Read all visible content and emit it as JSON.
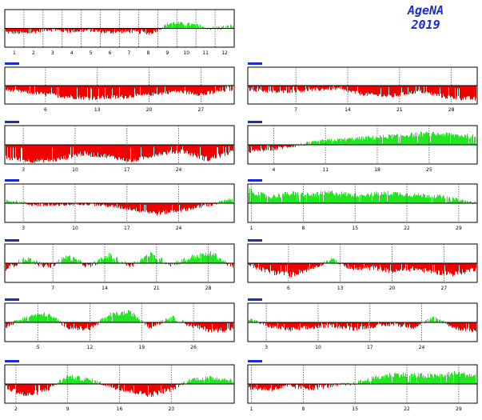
{
  "brand": {
    "name": "AgeNA",
    "year": "2019"
  },
  "colors": {
    "positive": "#22e622",
    "negative": "#f20000",
    "frame": "#000000",
    "title": "#1a2bd0"
  },
  "chart_data": [
    {
      "type": "bar",
      "title": "",
      "panel": "year-overview",
      "ticks": [
        "1",
        "2",
        "3",
        "4",
        "5",
        "6",
        "7",
        "8",
        "9",
        "10",
        "11",
        "12"
      ],
      "ylim": [
        -100,
        100
      ],
      "bands": [
        [
          -30,
          -10
        ],
        [
          -35,
          -15
        ],
        [
          -15,
          5
        ],
        [
          -25,
          -5
        ],
        [
          -20,
          0
        ],
        [
          -30,
          -10
        ],
        [
          -25,
          -5
        ],
        [
          -35,
          -15
        ],
        [
          20,
          40
        ],
        [
          10,
          30
        ],
        [
          -10,
          10
        ],
        [
          -5,
          25
        ]
      ]
    },
    {
      "type": "bar",
      "title": "",
      "ticks": [
        "6",
        "13",
        "20",
        "27"
      ],
      "ylim": [
        -100,
        100
      ],
      "bands": [
        [
          -30,
          -15
        ],
        [
          -50,
          -30
        ],
        [
          -70,
          -45
        ],
        [
          -80,
          -55
        ],
        [
          -75,
          -50
        ],
        [
          -60,
          -40
        ],
        [
          -40,
          -20
        ],
        [
          -60,
          -35
        ],
        [
          -30,
          10
        ]
      ]
    },
    {
      "type": "bar",
      "title": "",
      "ticks": [
        "7",
        "14",
        "21",
        "28"
      ],
      "ylim": [
        -100,
        100
      ],
      "bands": [
        [
          -30,
          -10
        ],
        [
          -45,
          -25
        ],
        [
          -35,
          -15
        ],
        [
          -25,
          -5
        ],
        [
          -55,
          -35
        ],
        [
          -70,
          -45
        ],
        [
          -40,
          -20
        ],
        [
          -75,
          -50
        ],
        [
          -85,
          -60
        ]
      ]
    },
    {
      "type": "bar",
      "title": "",
      "ticks": [
        "3",
        "10",
        "17",
        "24"
      ],
      "ylim": [
        -100,
        100
      ],
      "bands": [
        [
          -80,
          -55
        ],
        [
          -95,
          -75
        ],
        [
          -90,
          -65
        ],
        [
          -60,
          -30
        ],
        [
          -70,
          -45
        ],
        [
          -95,
          -75
        ],
        [
          -60,
          -35
        ],
        [
          -45,
          -20
        ],
        [
          -90,
          -60
        ],
        [
          -50,
          -25
        ]
      ]
    },
    {
      "type": "bar",
      "title": "",
      "ticks": [
        "4",
        "11",
        "18",
        "25"
      ],
      "ylim": [
        -100,
        100
      ],
      "bands": [
        [
          -45,
          -25
        ],
        [
          -30,
          -10
        ],
        [
          -10,
          10
        ],
        [
          10,
          30
        ],
        [
          20,
          40
        ],
        [
          25,
          50
        ],
        [
          35,
          60
        ],
        [
          45,
          70
        ],
        [
          40,
          65
        ],
        [
          30,
          55
        ]
      ]
    },
    {
      "type": "bar",
      "title": "",
      "ticks": [
        "3",
        "10",
        "17",
        "24"
      ],
      "ylim": [
        -100,
        100
      ],
      "bands": [
        [
          10,
          25
        ],
        [
          -15,
          0
        ],
        [
          -20,
          -5
        ],
        [
          -10,
          5
        ],
        [
          -20,
          -5
        ],
        [
          -40,
          -20
        ],
        [
          -65,
          -40
        ],
        [
          -45,
          -25
        ],
        [
          -20,
          0
        ],
        [
          10,
          30
        ]
      ]
    },
    {
      "type": "bar",
      "title": "",
      "ticks": [
        "1",
        "8",
        "15",
        "22",
        "29"
      ],
      "ylim": [
        -100,
        100
      ],
      "bands": [
        [
          50,
          80
        ],
        [
          20,
          45
        ],
        [
          35,
          65
        ],
        [
          30,
          55
        ],
        [
          40,
          70
        ],
        [
          30,
          55
        ],
        [
          35,
          60
        ],
        [
          40,
          65
        ],
        [
          30,
          55
        ],
        [
          25,
          50
        ],
        [
          10,
          30
        ],
        [
          -10,
          10
        ]
      ]
    },
    {
      "type": "bar",
      "title": "",
      "ticks": [
        "7",
        "14",
        "21",
        "28"
      ],
      "ylim": [
        -100,
        100
      ],
      "bands": [
        [
          -40,
          -15
        ],
        [
          10,
          40
        ],
        [
          -35,
          -10
        ],
        [
          20,
          50
        ],
        [
          -30,
          -5
        ],
        [
          25,
          55
        ],
        [
          -25,
          0
        ],
        [
          30,
          60
        ],
        [
          -20,
          5
        ],
        [
          15,
          45
        ],
        [
          35,
          65
        ],
        [
          -35,
          -10
        ]
      ]
    },
    {
      "type": "bar",
      "title": "",
      "ticks": [
        "6",
        "13",
        "20",
        "27"
      ],
      "ylim": [
        -100,
        100
      ],
      "bands": [
        [
          -20,
          0
        ],
        [
          -60,
          -30
        ],
        [
          -75,
          -45
        ],
        [
          -40,
          -15
        ],
        [
          10,
          30
        ],
        [
          -45,
          -20
        ],
        [
          -35,
          -10
        ],
        [
          -55,
          -30
        ],
        [
          -40,
          -15
        ],
        [
          -60,
          -35
        ],
        [
          -70,
          -40
        ],
        [
          -40,
          -15
        ]
      ]
    },
    {
      "type": "bar",
      "title": "",
      "ticks": [
        "5",
        "12",
        "19",
        "26"
      ],
      "ylim": [
        -100,
        100
      ],
      "bands": [
        [
          -30,
          -10
        ],
        [
          20,
          45
        ],
        [
          30,
          55
        ],
        [
          -35,
          -10
        ],
        [
          -50,
          -25
        ],
        [
          25,
          50
        ],
        [
          40,
          65
        ],
        [
          -35,
          -10
        ],
        [
          15,
          40
        ],
        [
          -30,
          -5
        ],
        [
          -55,
          -30
        ],
        [
          -45,
          -20
        ]
      ]
    },
    {
      "type": "bar",
      "title": "",
      "ticks": [
        "3",
        "10",
        "17",
        "24"
      ],
      "ylim": [
        -100,
        100
      ],
      "bands": [
        [
          10,
          25
        ],
        [
          -30,
          -10
        ],
        [
          -50,
          -25
        ],
        [
          -40,
          -15
        ],
        [
          -25,
          -5
        ],
        [
          -45,
          -20
        ],
        [
          -30,
          -10
        ],
        [
          -20,
          0
        ],
        [
          -35,
          -10
        ],
        [
          15,
          35
        ],
        [
          -40,
          -20
        ],
        [
          -55,
          -30
        ]
      ]
    },
    {
      "type": "bar",
      "title": "",
      "ticks": [
        "2",
        "9",
        "16",
        "23"
      ],
      "ylim": [
        -100,
        100
      ],
      "bands": [
        [
          -30,
          -5
        ],
        [
          -75,
          -45
        ],
        [
          -40,
          -15
        ],
        [
          25,
          50
        ],
        [
          10,
          35
        ],
        [
          -20,
          0
        ],
        [
          -50,
          -25
        ],
        [
          -70,
          -40
        ],
        [
          -40,
          -15
        ],
        [
          15,
          35
        ],
        [
          20,
          45
        ],
        [
          10,
          30
        ]
      ]
    },
    {
      "type": "bar",
      "title": "",
      "ticks": [
        "1",
        "8",
        "15",
        "22",
        "29"
      ],
      "ylim": [
        -100,
        100
      ],
      "bands": [
        [
          -30,
          -10
        ],
        [
          -40,
          -15
        ],
        [
          -25,
          0
        ],
        [
          -35,
          -10
        ],
        [
          -20,
          5
        ],
        [
          -10,
          10
        ],
        [
          15,
          40
        ],
        [
          35,
          65
        ],
        [
          30,
          60
        ],
        [
          25,
          55
        ],
        [
          40,
          70
        ],
        [
          30,
          55
        ]
      ]
    }
  ]
}
